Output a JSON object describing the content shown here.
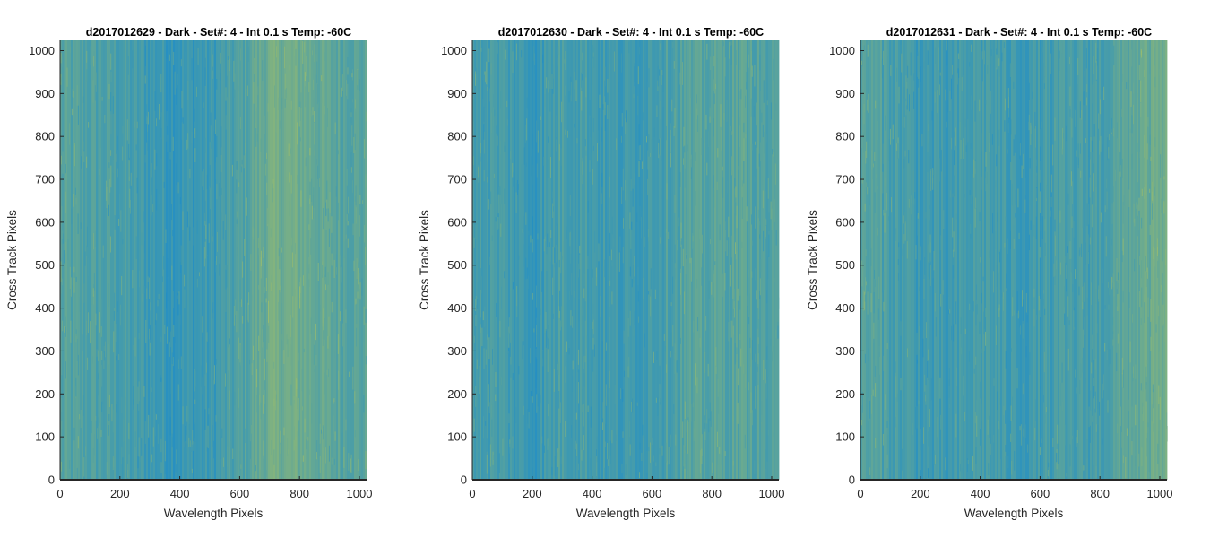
{
  "chart_data": [
    {
      "type": "heatmap",
      "title": "d2017012629 - Dark - Set#: 4 - Int 0.1 s Temp: -60C",
      "xlabel": "Wavelength Pixels",
      "ylabel": "Cross Track Pixels",
      "xlim": [
        0,
        1024
      ],
      "ylim": [
        0,
        1024
      ],
      "xticks": [
        0,
        200,
        400,
        600,
        800,
        1000
      ],
      "yticks": [
        0,
        100,
        200,
        300,
        400,
        500,
        600,
        700,
        800,
        900,
        1000
      ],
      "column_profile": {
        "x": [
          0,
          100,
          200,
          300,
          400,
          500,
          600,
          700,
          800,
          900,
          1024
        ],
        "level": [
          0.42,
          0.4,
          0.36,
          0.3,
          0.26,
          0.28,
          0.4,
          0.6,
          0.58,
          0.48,
          0.45
        ]
      }
    },
    {
      "type": "heatmap",
      "title": "d2017012630 - Dark - Set#: 4 - Int 0.1 s Temp: -60C",
      "xlabel": "Wavelength Pixels",
      "ylabel": "Cross Track Pixels",
      "xlim": [
        0,
        1024
      ],
      "ylim": [
        0,
        1024
      ],
      "xticks": [
        0,
        200,
        400,
        600,
        800,
        1000
      ],
      "yticks": [
        0,
        100,
        200,
        300,
        400,
        500,
        600,
        700,
        800,
        900,
        1000
      ],
      "column_profile": {
        "x": [
          0,
          100,
          200,
          300,
          400,
          500,
          600,
          700,
          800,
          900,
          1024
        ],
        "level": [
          0.36,
          0.34,
          0.26,
          0.38,
          0.34,
          0.28,
          0.36,
          0.42,
          0.44,
          0.46,
          0.36
        ]
      }
    },
    {
      "type": "heatmap",
      "title": "d2017012631 - Dark - Set#: 4 - Int 0.1 s Temp: -60C",
      "xlabel": "Wavelength Pixels",
      "ylabel": "Cross Track Pixels",
      "xlim": [
        0,
        1024
      ],
      "ylim": [
        0,
        1024
      ],
      "xticks": [
        0,
        200,
        400,
        600,
        800,
        1000
      ],
      "yticks": [
        0,
        100,
        200,
        300,
        400,
        500,
        600,
        700,
        800,
        900,
        1000
      ],
      "column_profile": {
        "x": [
          0,
          100,
          200,
          300,
          400,
          500,
          600,
          700,
          800,
          900,
          1024
        ],
        "level": [
          0.44,
          0.38,
          0.3,
          0.28,
          0.36,
          0.3,
          0.32,
          0.34,
          0.36,
          0.5,
          0.58
        ]
      }
    }
  ],
  "colors": {
    "background": "#ffffff",
    "axis": "#262626",
    "low": "#0d86d5",
    "high": "#b4c65a"
  }
}
